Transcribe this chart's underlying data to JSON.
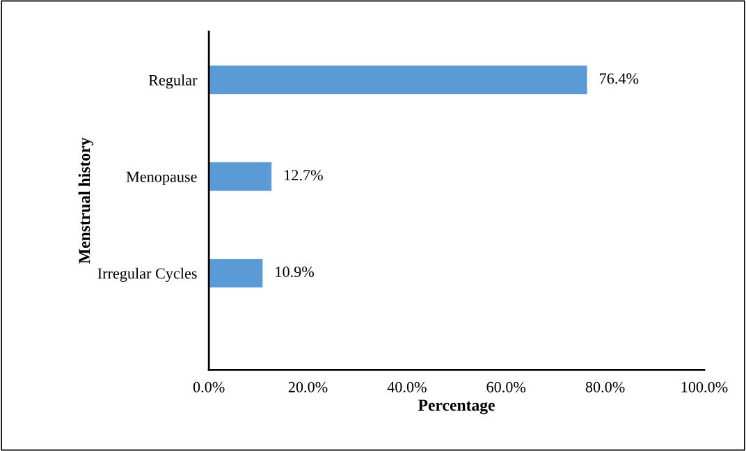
{
  "chart_data": {
    "type": "bar",
    "orientation": "horizontal",
    "categories": [
      "Regular",
      "Menopause",
      "Irregular Cycles"
    ],
    "values": [
      76.4,
      12.7,
      10.9
    ],
    "value_labels": [
      "76.4%",
      "12.7%",
      "10.9%"
    ],
    "color": "#5b9bd5",
    "xlabel": "Percentage",
    "ylabel": "Menstrual history",
    "xlim": [
      0,
      100
    ],
    "xticks": [
      {
        "value": 0,
        "label": "0.0%"
      },
      {
        "value": 20,
        "label": "20.0%"
      },
      {
        "value": 40,
        "label": "40.0%"
      },
      {
        "value": 60,
        "label": "60.0%"
      },
      {
        "value": 80,
        "label": "80.0%"
      },
      {
        "value": 100,
        "label": "100.0%"
      }
    ],
    "grid": false
  }
}
